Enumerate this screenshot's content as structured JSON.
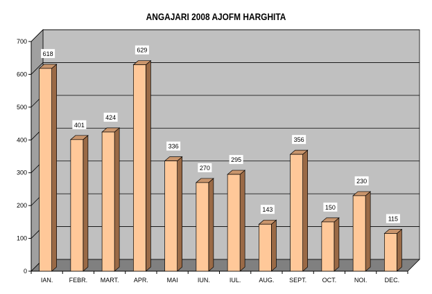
{
  "chart_data": {
    "type": "bar",
    "title": "ANGAJARI 2008 AJOFM HARGHITA",
    "xlabel": "",
    "ylabel": "",
    "categories": [
      "IAN.",
      "FEBR.",
      "MART.",
      "APR.",
      "MAI",
      "IUN.",
      "IUL.",
      "AUG.",
      "SEPT.",
      "OCT.",
      "NOI.",
      "DEC."
    ],
    "values": [
      618,
      401,
      424,
      629,
      336,
      270,
      295,
      143,
      356,
      150,
      230,
      115
    ],
    "ylim": [
      0,
      700
    ],
    "yticks": [
      0,
      100,
      200,
      300,
      400,
      500,
      600,
      700
    ],
    "grid": true,
    "legend": "none",
    "colors": {
      "bar_front": "#ffc899",
      "bar_side": "#9a6a46",
      "bar_top": "#c9956c",
      "plot_back": "#c0c0c0",
      "plot_floor": "#808080"
    }
  }
}
